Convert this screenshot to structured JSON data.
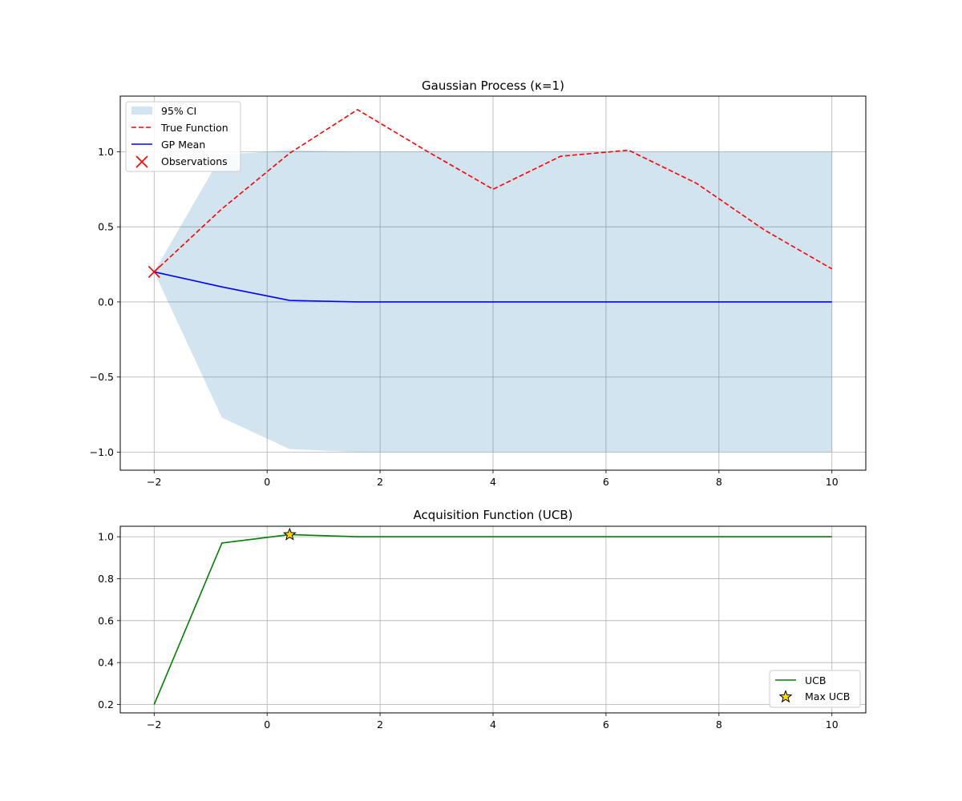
{
  "chart_data": [
    {
      "type": "line",
      "title": "Gaussian Process (κ=1)",
      "xlabel": "",
      "ylabel": "",
      "xlim": [
        -2.6,
        10.6
      ],
      "ylim": [
        -1.12,
        1.37
      ],
      "xticks": [
        -2,
        0,
        2,
        4,
        6,
        8,
        10
      ],
      "yticks": [
        -1.0,
        -0.5,
        0.0,
        0.5,
        1.0
      ],
      "xtick_labels": [
        "−2",
        "0",
        "2",
        "4",
        "6",
        "8",
        "10"
      ],
      "ytick_labels": [
        "−1.0",
        "−0.5",
        "0.0",
        "0.5",
        "1.0"
      ],
      "grid": true,
      "legend_position": "upper-left",
      "x": [
        -2.0,
        -0.8,
        0.4,
        1.6,
        2.8,
        4.0,
        5.2,
        6.4,
        7.6,
        8.8,
        10.0
      ],
      "series": [
        {
          "name": "95% CI",
          "kind": "band",
          "color": "#1f77b4",
          "lower": [
            0.2,
            -0.77,
            -0.98,
            -1.0,
            -1.0,
            -1.0,
            -1.0,
            -1.0,
            -1.0,
            -1.0,
            -1.0
          ],
          "upper": [
            0.2,
            0.98,
            1.01,
            1.0,
            1.0,
            1.0,
            1.0,
            1.0,
            1.0,
            1.0,
            1.0
          ]
        },
        {
          "name": "True Function",
          "kind": "dashed-line",
          "color": "#ff0000",
          "values": [
            0.2,
            0.62,
            0.99,
            1.28,
            1.01,
            0.75,
            0.97,
            1.01,
            0.79,
            0.48,
            0.22
          ]
        },
        {
          "name": "GP Mean",
          "kind": "line",
          "color": "#0000ff",
          "values": [
            0.2,
            0.1,
            0.01,
            0.0,
            0.0,
            0.0,
            0.0,
            0.0,
            0.0,
            0.0,
            0.0
          ]
        },
        {
          "name": "Observations",
          "kind": "x-marker",
          "color": "#ff0000",
          "points": [
            {
              "x": -2.0,
              "y": 0.2
            }
          ]
        }
      ]
    },
    {
      "type": "line",
      "title": "Acquisition Function (UCB)",
      "xlabel": "",
      "ylabel": "",
      "xlim": [
        -2.6,
        10.6
      ],
      "ylim": [
        0.16,
        1.05
      ],
      "xticks": [
        -2,
        0,
        2,
        4,
        6,
        8,
        10
      ],
      "yticks": [
        0.2,
        0.4,
        0.6,
        0.8,
        1.0
      ],
      "xtick_labels": [
        "−2",
        "0",
        "2",
        "4",
        "6",
        "8",
        "10"
      ],
      "ytick_labels": [
        "0.2",
        "0.4",
        "0.6",
        "0.8",
        "1.0"
      ],
      "grid": true,
      "legend_position": "lower-right",
      "x": [
        -2.0,
        -0.8,
        0.4,
        1.6,
        2.8,
        4.0,
        5.2,
        6.4,
        7.6,
        8.8,
        10.0
      ],
      "series": [
        {
          "name": "UCB",
          "kind": "line",
          "color": "#008000",
          "values": [
            0.2,
            0.97,
            1.01,
            1.0,
            1.0,
            1.0,
            1.0,
            1.0,
            1.0,
            1.0,
            1.0
          ]
        },
        {
          "name": "Max UCB",
          "kind": "star-marker",
          "color": "#ffd700",
          "points": [
            {
              "x": 0.4,
              "y": 1.01
            }
          ]
        }
      ]
    }
  ]
}
